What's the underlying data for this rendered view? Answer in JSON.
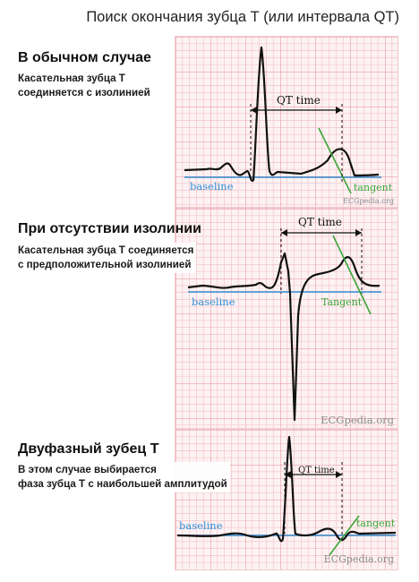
{
  "title": "Поиск окончания зубца Т (или интервала QT)",
  "sections": [
    {
      "heading": "В обычном случае",
      "note": "Касательная зубца Т\nсоединяется с изолинией",
      "qt_label": "QT time",
      "baseline_label": "baseline",
      "tangent_label": "tangent",
      "source_label": "ECGpedia.org"
    },
    {
      "heading": "При отсутствии изолинии",
      "note": "Касательная зубца Т соединяется\nс предположительной изолинией",
      "qt_label": "QT time",
      "baseline_label": "baseline",
      "tangent_label": "Tangent",
      "source_label": "ECGpedia.org"
    },
    {
      "heading": "Двуфазный зубец Т",
      "note": "В этом случае выбирается\nфаза зубца Т с наибольшей амплитудой",
      "qt_label": "QT time",
      "baseline_label": "baseline",
      "tangent_label": "tangent",
      "source_label": "ECGpedia.org"
    }
  ],
  "colors": {
    "grid_fine": "#f3c4c9",
    "grid_major": "#e58a94",
    "trace": "#111111",
    "baseline": "#2f8fd6",
    "tangent": "#3aa535"
  }
}
